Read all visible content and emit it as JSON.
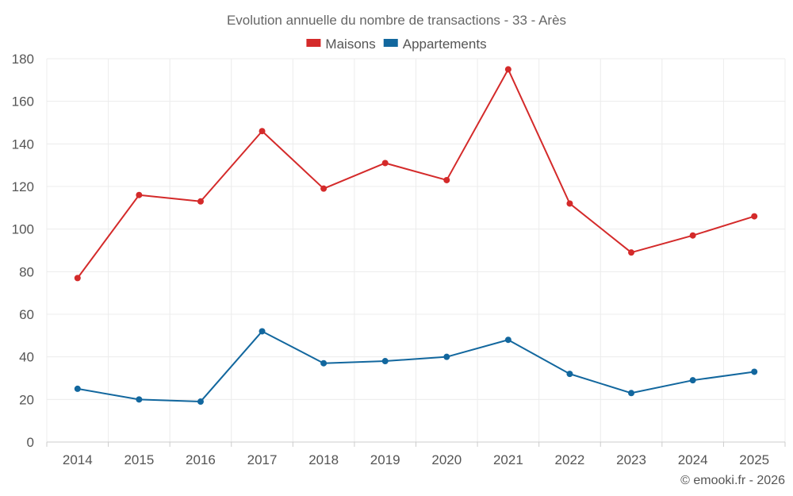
{
  "chart_data": {
    "type": "line",
    "title": "Evolution annuelle du nombre de transactions - 33 - Arès",
    "categories": [
      "2014",
      "2015",
      "2016",
      "2017",
      "2018",
      "2019",
      "2020",
      "2021",
      "2022",
      "2023",
      "2024",
      "2025"
    ],
    "ylim": [
      0,
      180
    ],
    "yticks": [
      0,
      20,
      40,
      60,
      80,
      100,
      120,
      140,
      160,
      180
    ],
    "grid": true,
    "legend_position": "top-center",
    "series": [
      {
        "name": "Maisons",
        "color": "#d42a2a",
        "values": [
          77,
          116,
          113,
          146,
          119,
          131,
          123,
          175,
          112,
          89,
          97,
          106
        ]
      },
      {
        "name": "Appartements",
        "color": "#12679e",
        "values": [
          25,
          20,
          19,
          52,
          37,
          38,
          40,
          48,
          32,
          23,
          29,
          33
        ]
      }
    ]
  },
  "credit": "© emooki.fr - 2026"
}
